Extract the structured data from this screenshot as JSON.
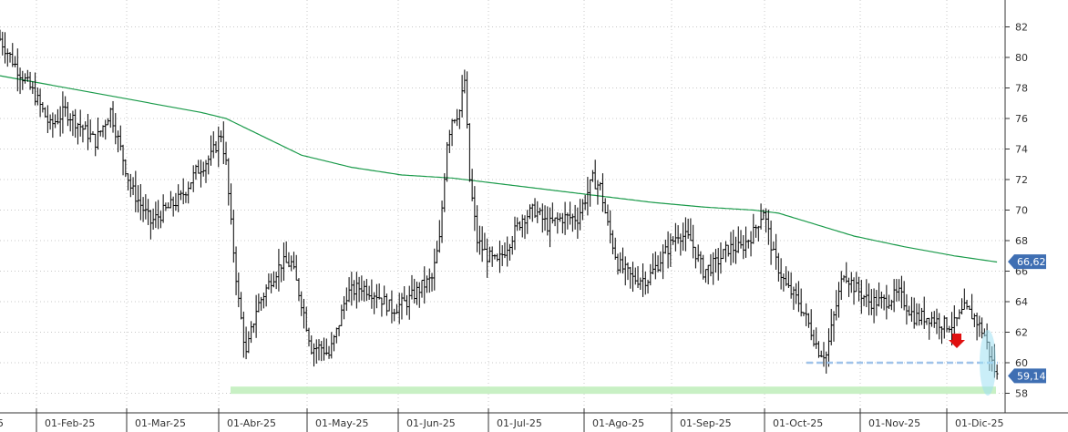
{
  "chart_data": {
    "type": "ohlc",
    "title": "",
    "xlabel": "",
    "ylabel": "",
    "ylim": [
      57,
      83.5
    ],
    "y_ticks": [
      58,
      60,
      62,
      64,
      66,
      68,
      70,
      72,
      74,
      76,
      78,
      80,
      82
    ],
    "x_ticks": [
      "01-Feb-25",
      "01-Mar-25",
      "01-Abr-25",
      "01-May-25",
      "01-Jun-25",
      "01-Jul-25",
      "01-Ago-25",
      "01-Sep-25",
      "01-Oct-25",
      "01-Nov-25",
      "01-Dic-25"
    ],
    "x_edge_label": "5",
    "grid": true,
    "bar_color": "#000000",
    "ma_color": "#1a9a4a",
    "price_anchors": [
      [
        0,
        81.2
      ],
      [
        6,
        79.5
      ],
      [
        14,
        77.5
      ],
      [
        20,
        75.5
      ],
      [
        26,
        76.5
      ],
      [
        32,
        75.5
      ],
      [
        38,
        74.5
      ],
      [
        44,
        76.5
      ],
      [
        52,
        71.5
      ],
      [
        60,
        69.2
      ],
      [
        66,
        70.0
      ],
      [
        72,
        70.8
      ],
      [
        78,
        72.5
      ],
      [
        84,
        73.5
      ],
      [
        88,
        75.0
      ],
      [
        90,
        73.0
      ],
      [
        92,
        69.0
      ],
      [
        95,
        64.0
      ],
      [
        98,
        60.5
      ],
      [
        102,
        63.5
      ],
      [
        108,
        65.5
      ],
      [
        112,
        66.5
      ],
      [
        116,
        66.5
      ],
      [
        120,
        64.0
      ],
      [
        124,
        61.0
      ],
      [
        128,
        61.0
      ],
      [
        131,
        60.5
      ],
      [
        134,
        62.0
      ],
      [
        138,
        64.5
      ],
      [
        144,
        65.0
      ],
      [
        150,
        64.5
      ],
      [
        156,
        63.5
      ],
      [
        162,
        64.0
      ],
      [
        168,
        65.0
      ],
      [
        172,
        65.5
      ],
      [
        175,
        68.0
      ],
      [
        178,
        74.5
      ],
      [
        180,
        76.0
      ],
      [
        183,
        76.5
      ],
      [
        185,
        78.5
      ],
      [
        187,
        72.0
      ],
      [
        190,
        68.0
      ],
      [
        194,
        67.0
      ],
      [
        198,
        66.5
      ],
      [
        203,
        68.0
      ],
      [
        208,
        69.5
      ],
      [
        213,
        70.0
      ],
      [
        218,
        69.0
      ],
      [
        224,
        69.5
      ],
      [
        230,
        69.5
      ],
      [
        236,
        72.0
      ],
      [
        239,
        71.5
      ],
      [
        242,
        69.0
      ],
      [
        246,
        66.5
      ],
      [
        252,
        65.5
      ],
      [
        258,
        65.5
      ],
      [
        264,
        67.0
      ],
      [
        270,
        68.5
      ],
      [
        275,
        68.0
      ],
      [
        280,
        66.0
      ],
      [
        285,
        66.5
      ],
      [
        290,
        67.5
      ],
      [
        295,
        67.5
      ],
      [
        300,
        68.5
      ],
      [
        304,
        70.0
      ],
      [
        308,
        67.0
      ],
      [
        313,
        65.0
      ],
      [
        318,
        64.0
      ],
      [
        322,
        62.5
      ],
      [
        326,
        60.8
      ],
      [
        329,
        60.5
      ],
      [
        332,
        63.0
      ],
      [
        336,
        66.0
      ],
      [
        340,
        65.0
      ],
      [
        346,
        64.0
      ],
      [
        352,
        64.0
      ],
      [
        358,
        64.5
      ],
      [
        364,
        63.0
      ],
      [
        370,
        63.0
      ],
      [
        376,
        62.5
      ],
      [
        380,
        62.5
      ],
      [
        384,
        63.5
      ],
      [
        388,
        63.0
      ],
      [
        392,
        61.8
      ],
      [
        395,
        60.0
      ],
      [
        397,
        59.1
      ]
    ],
    "ma_anchors": [
      [
        0,
        78.8
      ],
      [
        20,
        78.2
      ],
      [
        40,
        77.6
      ],
      [
        60,
        77.0
      ],
      [
        80,
        76.4
      ],
      [
        90,
        76.0
      ],
      [
        100,
        75.2
      ],
      [
        120,
        73.6
      ],
      [
        140,
        72.8
      ],
      [
        160,
        72.3
      ],
      [
        180,
        72.1
      ],
      [
        200,
        71.7
      ],
      [
        220,
        71.3
      ],
      [
        240,
        70.9
      ],
      [
        260,
        70.5
      ],
      [
        280,
        70.2
      ],
      [
        300,
        70.0
      ],
      [
        310,
        69.8
      ],
      [
        320,
        69.3
      ],
      [
        340,
        68.3
      ],
      [
        360,
        67.6
      ],
      [
        380,
        67.0
      ],
      [
        397,
        66.6
      ]
    ],
    "last_bar_index": 397,
    "annotations": {
      "ma_tag": {
        "label": "66,62",
        "value": 66.62,
        "color": "#3f6fb3"
      },
      "price_tag": {
        "label": "59,14",
        "value": 59.14,
        "color": "#3f6fb3"
      },
      "support_band": {
        "value": 58.2,
        "color": "#c8f0c4"
      },
      "dashed_support": {
        "value": 60.0,
        "color": "#9fc3ea"
      },
      "down_arrow": {
        "color": "#e01010"
      },
      "highlight_ellipse": {
        "color": "#9fe0f2"
      }
    }
  }
}
